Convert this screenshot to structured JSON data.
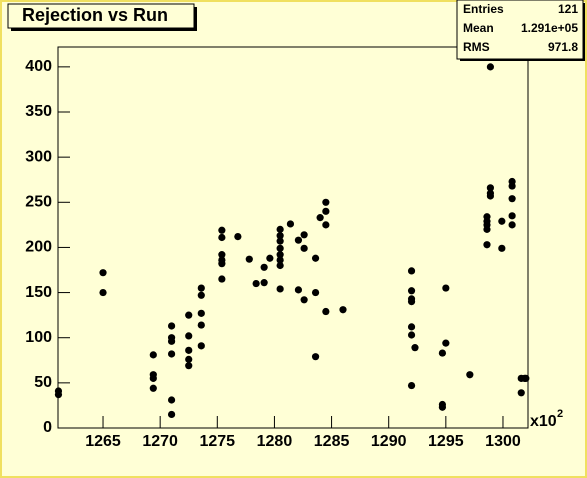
{
  "chart_data": {
    "type": "scatter",
    "title": "Rejection vs Run",
    "x": [
      1261.1,
      1261.1,
      1265.0,
      1265.0,
      1269.4,
      1269.4,
      1269.4,
      1269.4,
      1271.0,
      1271.0,
      1271.0,
      1271.0,
      1271.0,
      1271.0,
      1272.5,
      1272.5,
      1272.5,
      1272.5,
      1272.5,
      1273.6,
      1273.6,
      1273.6,
      1273.6,
      1273.6,
      1275.4,
      1275.4,
      1275.4,
      1275.4,
      1275.4,
      1275.4,
      1276.8,
      1277.8,
      1278.4,
      1279.1,
      1279.1,
      1279.6,
      1280.5,
      1280.5,
      1280.5,
      1280.5,
      1280.5,
      1280.5,
      1280.5,
      1280.5,
      1281.4,
      1282.1,
      1282.1,
      1282.6,
      1282.6,
      1282.6,
      1283.6,
      1283.6,
      1283.6,
      1284.0,
      1284.5,
      1284.5,
      1284.5,
      1284.5,
      1286.0,
      1292.0,
      1292.0,
      1292.0,
      1292.0,
      1292.0,
      1292.0,
      1292.0,
      1292.3,
      1294.7,
      1294.7,
      1294.7,
      1295.0,
      1295.0,
      1297.1,
      1298.6,
      1298.6,
      1298.6,
      1298.6,
      1298.6,
      1298.9,
      1298.9,
      1298.9,
      1298.9,
      1299.9,
      1299.9,
      1300.8,
      1300.8,
      1300.8,
      1300.8,
      1300.8,
      1301.6,
      1301.6,
      1301.9,
      1302.0
    ],
    "values": [
      41,
      37,
      172,
      150,
      81,
      59,
      55,
      44,
      113,
      100,
      96,
      82,
      31,
      15,
      125,
      102,
      86,
      76,
      69,
      155,
      147,
      127,
      114,
      91,
      219,
      211,
      192,
      186,
      182,
      165,
      212,
      187,
      160,
      178,
      161,
      188,
      220,
      213,
      207,
      199,
      192,
      186,
      180,
      154,
      226,
      208,
      153,
      214,
      199,
      142,
      188,
      150,
      79,
      233,
      250,
      240,
      225,
      129,
      131,
      47,
      112,
      103,
      140,
      152,
      143,
      174,
      89,
      83,
      26,
      23,
      155,
      94,
      59,
      203,
      225,
      220,
      234,
      229,
      266,
      260,
      257,
      400,
      229,
      199,
      273,
      268,
      254,
      235,
      225,
      55,
      39,
      55,
      55
    ],
    "color": "#000000",
    "xlim": [
      1261.06,
      1302.19
    ],
    "xticks": [
      1265,
      1270,
      1275,
      1280,
      1285,
      1290,
      1295,
      1300
    ],
    "ylim": [
      0,
      422
    ],
    "yticks": [
      0,
      50,
      100,
      150,
      200,
      250,
      300,
      350,
      400
    ],
    "x_multiplier": "x10",
    "x_multiplier_exponent": "2",
    "stats": [
      {
        "label": "Entries",
        "value": "121"
      },
      {
        "label": "Mean",
        "value": "1.291e+05"
      },
      {
        "label": "RMS",
        "value": "971.8"
      }
    ]
  }
}
